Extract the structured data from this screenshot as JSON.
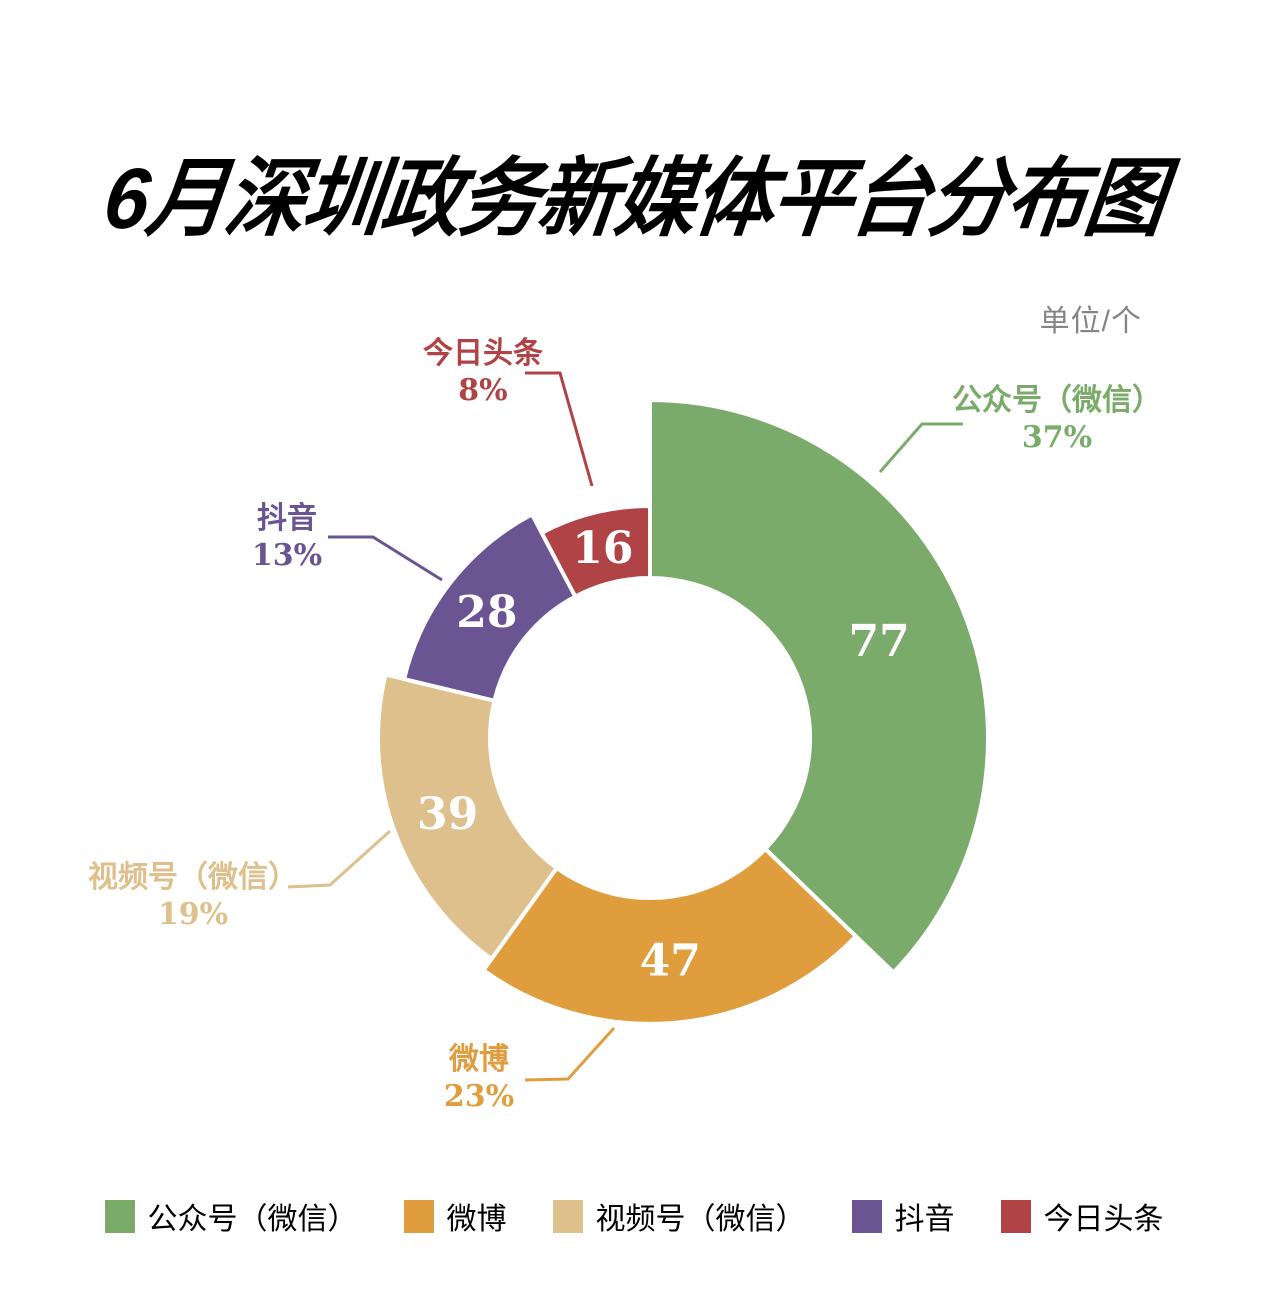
{
  "header": {
    "title": "6月深圳政务新媒体平台分布图",
    "unit_label": "单位/个"
  },
  "chart_data": {
    "type": "pie",
    "subtype": "rose-donut",
    "title": "6月深圳政务新媒体平台分布图",
    "unit_label": "单位/个",
    "legend_position": "bottom",
    "start_angle": "top",
    "direction": "clockwise",
    "series": [
      {
        "name": "公众号（微信）",
        "value": 77,
        "percent_label": "37%",
        "color": "#7aab6a"
      },
      {
        "name": "微博",
        "value": 47,
        "percent_label": "23%",
        "color": "#e09d3d"
      },
      {
        "name": "视频号（微信）",
        "value": 39,
        "percent_label": "19%",
        "color": "#ddc08c"
      },
      {
        "name": "抖音",
        "value": 28,
        "percent_label": "13%",
        "color": "#6a5492"
      },
      {
        "name": "今日头条",
        "value": 16,
        "percent_label": "8%",
        "color": "#b04345"
      }
    ]
  }
}
